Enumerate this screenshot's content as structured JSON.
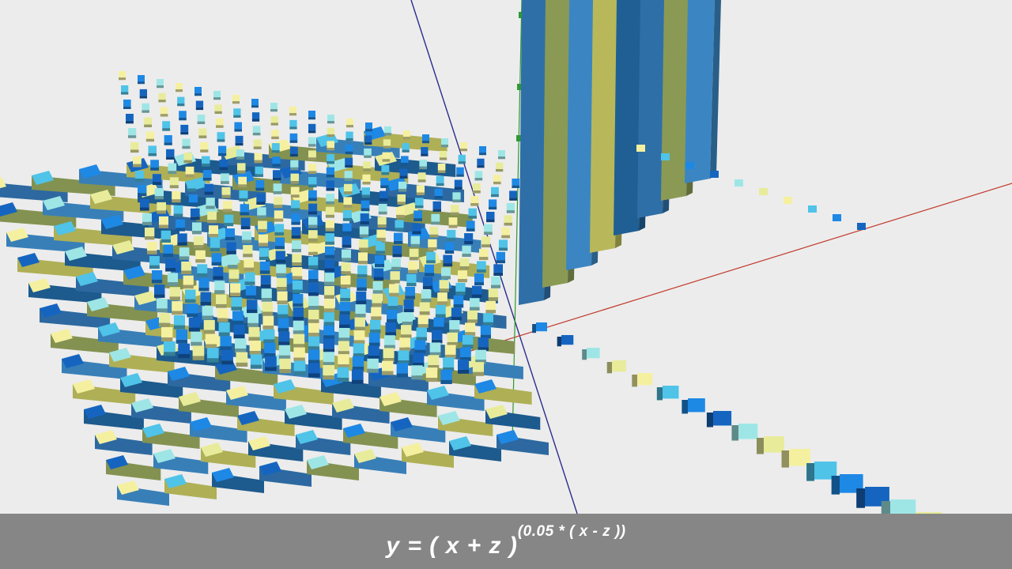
{
  "scene": {
    "description_free": true,
    "palette": [
      "#f5f0a0",
      "#4fc3e8",
      "#1e88e5",
      "#1565c0",
      "#9ee6e6",
      "#e8ec9a"
    ],
    "column_colors": [
      "#2f6fa8",
      "#8a9a55",
      "#3b86c2",
      "#b8b85a",
      "#1f5f94"
    ],
    "axes": {
      "x_color": "#c0392b",
      "y_color": "#2e9a2e",
      "z_color": "#2c2c8c"
    }
  },
  "formula": {
    "base": "y = ( x + z )",
    "exponent": "(0.05 * ( x - z ))"
  }
}
